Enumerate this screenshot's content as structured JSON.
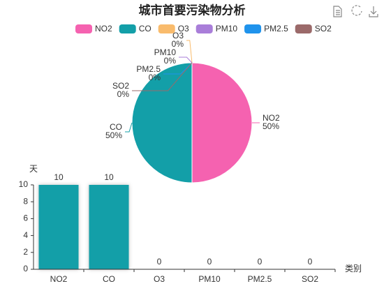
{
  "chart_data": [
    {
      "type": "pie",
      "title": "城市首要污染物分析",
      "categories": [
        "NO2",
        "CO",
        "O3",
        "PM10",
        "PM2.5",
        "SO2"
      ],
      "colors": [
        "#f562b0",
        "#139fa8",
        "#f9bb6c",
        "#a97ed9",
        "#1f93ec",
        "#9b6a6a"
      ],
      "values": [
        50,
        50,
        0,
        0,
        0,
        0
      ],
      "value_labels": [
        "50%",
        "50%",
        "0%",
        "0%",
        "0%",
        "0%"
      ]
    },
    {
      "type": "bar",
      "ylabel": "天",
      "xlabel": "类别",
      "categories": [
        "NO2",
        "CO",
        "O3",
        "PM10",
        "PM2.5",
        "SO2"
      ],
      "values": [
        10,
        10,
        0,
        0,
        0,
        0
      ],
      "color": "#139fa8",
      "ylim": [
        0,
        10
      ],
      "yticks": [
        0,
        2,
        4,
        6,
        8,
        10
      ]
    }
  ]
}
